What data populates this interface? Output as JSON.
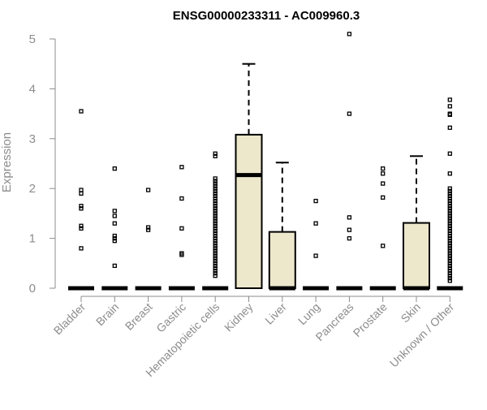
{
  "chart_data": {
    "type": "boxplot",
    "title": "ENSG00000233311 - AC009960.3",
    "xlabel": "",
    "ylabel": "Expression",
    "ylim": [
      0,
      5
    ],
    "yticks": [
      0,
      1,
      2,
      3,
      4,
      5
    ],
    "grid": false,
    "box_fill": "#ede7cc",
    "categories": [
      "Bladder",
      "Brain",
      "Breast",
      "Gastric",
      "Hematopoietic cells",
      "Kidney",
      "Liver",
      "Lung",
      "Pancreas",
      "Prostate",
      "Skin",
      "Unknown / Other"
    ],
    "boxes": [
      {
        "q1": 0,
        "median": 0,
        "q3": 0,
        "whisker_low": 0,
        "whisker_high": 0,
        "outliers": [
          3.55,
          1.97,
          1.9,
          1.65,
          1.6,
          1.25,
          1.2,
          0.8
        ]
      },
      {
        "q1": 0,
        "median": 0,
        "q3": 0,
        "whisker_low": 0,
        "whisker_high": 0,
        "outliers": [
          2.4,
          1.55,
          1.45,
          1.3,
          1.05,
          1.0,
          0.95,
          0.45
        ]
      },
      {
        "q1": 0,
        "median": 0,
        "q3": 0,
        "whisker_low": 0,
        "whisker_high": 0,
        "outliers": [
          1.97,
          1.22,
          1.17
        ]
      },
      {
        "q1": 0,
        "median": 0,
        "q3": 0,
        "whisker_low": 0,
        "whisker_high": 0,
        "outliers": [
          2.43,
          1.8,
          1.2,
          0.7,
          0.67
        ]
      },
      {
        "q1": 0,
        "median": 0,
        "q3": 0,
        "whisker_low": 0,
        "whisker_high": 0,
        "outliers": [
          2.7,
          2.65,
          2.2,
          2.15,
          2.1,
          2.05,
          2.0,
          1.95,
          1.9,
          1.85,
          1.8,
          1.75,
          1.7,
          1.65,
          1.6,
          1.55,
          1.5,
          1.45,
          1.4,
          1.35,
          1.3,
          1.25,
          1.2,
          1.15,
          1.1,
          1.05,
          1.0,
          0.95,
          0.9,
          0.85,
          0.8,
          0.75,
          0.7,
          0.65,
          0.6,
          0.55,
          0.5,
          0.45,
          0.4,
          0.35,
          0.3,
          0.25
        ]
      },
      {
        "q1": 0,
        "median": 2.27,
        "q3": 3.08,
        "whisker_low": 0,
        "whisker_high": 4.5,
        "outliers": []
      },
      {
        "q1": 0,
        "median": 0,
        "q3": 1.13,
        "whisker_low": 0,
        "whisker_high": 2.52,
        "outliers": []
      },
      {
        "q1": 0,
        "median": 0,
        "q3": 0,
        "whisker_low": 0,
        "whisker_high": 0,
        "outliers": [
          1.75,
          1.3,
          0.65
        ]
      },
      {
        "q1": 0,
        "median": 0,
        "q3": 0,
        "whisker_low": 0,
        "whisker_high": 0,
        "outliers": [
          5.1,
          3.5,
          1.42,
          1.17,
          1.0
        ]
      },
      {
        "q1": 0,
        "median": 0,
        "q3": 0,
        "whisker_low": 0,
        "whisker_high": 0,
        "outliers": [
          2.4,
          2.3,
          2.1,
          1.82,
          0.85
        ]
      },
      {
        "q1": 0,
        "median": 0,
        "q3": 1.31,
        "whisker_low": 0,
        "whisker_high": 2.65,
        "outliers": []
      },
      {
        "q1": 0,
        "median": 0,
        "q3": 0,
        "whisker_low": 0,
        "whisker_high": 0,
        "outliers": [
          3.78,
          3.65,
          3.5,
          3.48,
          3.22,
          2.7,
          2.3,
          2.0,
          1.95,
          1.9,
          1.85,
          1.8,
          1.75,
          1.7,
          1.65,
          1.6,
          1.55,
          1.5,
          1.45,
          1.4,
          1.35,
          1.3,
          1.25,
          1.2,
          1.15,
          1.1,
          1.05,
          1.0,
          0.95,
          0.9,
          0.85,
          0.8,
          0.75,
          0.7,
          0.65,
          0.6,
          0.55,
          0.5,
          0.45,
          0.4,
          0.35,
          0.3,
          0.25,
          0.2,
          0.15
        ]
      }
    ]
  }
}
